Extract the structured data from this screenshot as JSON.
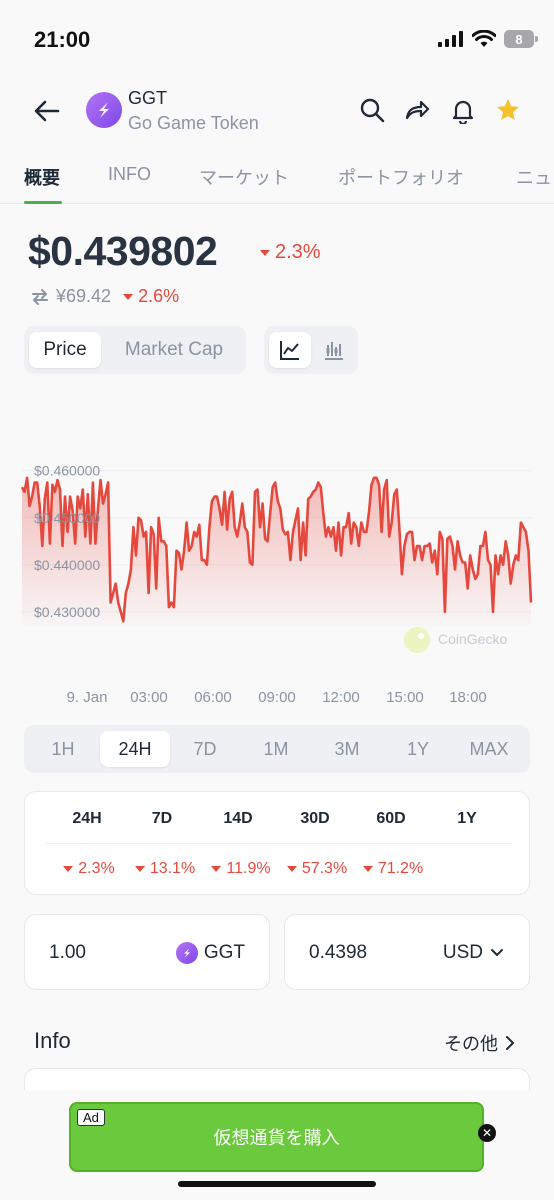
{
  "status": {
    "time": "21:00",
    "battery": "8"
  },
  "header": {
    "symbol": "GGT",
    "name": "Go Game Token"
  },
  "tabs": [
    {
      "label": "概要"
    },
    {
      "label": "INFO"
    },
    {
      "label": "マーケット"
    },
    {
      "label": "ポートフォリオ"
    },
    {
      "label": "ニュ"
    }
  ],
  "price": {
    "value": "$0.439802",
    "change": "2.3%",
    "jpy_value": "¥69.42",
    "jpy_change": "2.6%"
  },
  "metric_toggle": {
    "price": "Price",
    "market_cap": "Market Cap"
  },
  "chart_data": {
    "type": "line",
    "ylabels": [
      "$0.460000",
      "$0.450000",
      "$0.440000",
      "$0.430000"
    ],
    "xlabels": [
      "9. Jan",
      "03:00",
      "06:00",
      "09:00",
      "12:00",
      "15:00",
      "18:00"
    ],
    "ylim": [
      0.427,
      0.461
    ],
    "watermark": "CoinGecko",
    "color": "#e5493e",
    "values": [
      0.4565,
      0.4555,
      0.4585,
      0.4525,
      0.4545,
      0.4575,
      0.4575,
      0.4525,
      0.444,
      0.454,
      0.4575,
      0.4445,
      0.457,
      0.4555,
      0.458,
      0.456,
      0.444,
      0.4545,
      0.447,
      0.4545,
      0.4515,
      0.4445,
      0.4545,
      0.452,
      0.456,
      0.446,
      0.455,
      0.4445,
      0.4575,
      0.4445,
      0.452,
      0.458,
      0.453,
      0.455,
      0.4575,
      0.432,
      0.434,
      0.436,
      0.432,
      0.43,
      0.428,
      0.434,
      0.436,
      0.439,
      0.448,
      0.442,
      0.45,
      0.4495,
      0.446,
      0.447,
      0.434,
      0.448,
      0.4465,
      0.435,
      0.45,
      0.445,
      0.445,
      0.444,
      0.431,
      0.432,
      0.431,
      0.443,
      0.4425,
      0.439,
      0.443,
      0.449,
      0.443,
      0.444,
      0.447,
      0.446,
      0.4485,
      0.441,
      0.441,
      0.44,
      0.448,
      0.4535,
      0.4545,
      0.4545,
      0.452,
      0.4485,
      0.4555,
      0.4475,
      0.454,
      0.4555,
      0.448,
      0.446,
      0.449,
      0.453,
      0.448,
      0.447,
      0.4405,
      0.44,
      0.4555,
      0.456,
      0.448,
      0.453,
      0.4455,
      0.445,
      0.451,
      0.4565,
      0.4575,
      0.4535,
      0.452,
      0.4475,
      0.4465,
      0.447,
      0.441,
      0.447,
      0.4495,
      0.452,
      0.441,
      0.449,
      0.442,
      0.454,
      0.4545,
      0.4555,
      0.456,
      0.4575,
      0.4565,
      0.451,
      0.446,
      0.448,
      0.446,
      0.448,
      0.443,
      0.449,
      0.442,
      0.448,
      0.448,
      0.451,
      0.4445,
      0.449,
      0.448,
      0.444,
      0.449,
      0.447,
      0.447,
      0.451,
      0.457,
      0.4585,
      0.4585,
      0.457,
      0.447,
      0.456,
      0.458,
      0.446,
      0.449,
      0.455,
      0.456,
      0.448,
      0.438,
      0.444,
      0.4465,
      0.447,
      0.447,
      0.441,
      0.444,
      0.444,
      0.441,
      0.444,
      0.444,
      0.4445,
      0.4405,
      0.443,
      0.438,
      0.447,
      0.4455,
      0.43,
      0.4455,
      0.446,
      0.444,
      0.439,
      0.445,
      0.442,
      0.4405,
      0.4405,
      0.435,
      0.442,
      0.439,
      0.437,
      0.438,
      0.444,
      0.444,
      0.447,
      0.441,
      0.44,
      0.43,
      0.442,
      0.438,
      0.442,
      0.44,
      0.445,
      0.442,
      0.436,
      0.44,
      0.442,
      0.441,
      0.449,
      0.448,
      0.447,
      0.443,
      0.432
    ]
  },
  "ranges": [
    "1H",
    "24H",
    "7D",
    "1M",
    "3M",
    "1Y",
    "MAX"
  ],
  "performance": {
    "headers": [
      "24H",
      "7D",
      "14D",
      "30D",
      "60D",
      "1Y"
    ],
    "values": [
      "2.3%",
      "13.1%",
      "11.9%",
      "57.3%",
      "71.2%",
      ""
    ]
  },
  "converter": {
    "amount": "1.00",
    "token": "GGT",
    "fiat_amount": "0.4398",
    "currency": "USD"
  },
  "info": {
    "title": "Info",
    "more": "その他"
  },
  "ad": {
    "label": "Ad",
    "text": "仮想通貨を購入"
  },
  "colors": {
    "accent_green": "#4caf50",
    "negative": "#e5493e",
    "ad_green": "#6bc93d",
    "token_purple": "#9b5cf0"
  }
}
